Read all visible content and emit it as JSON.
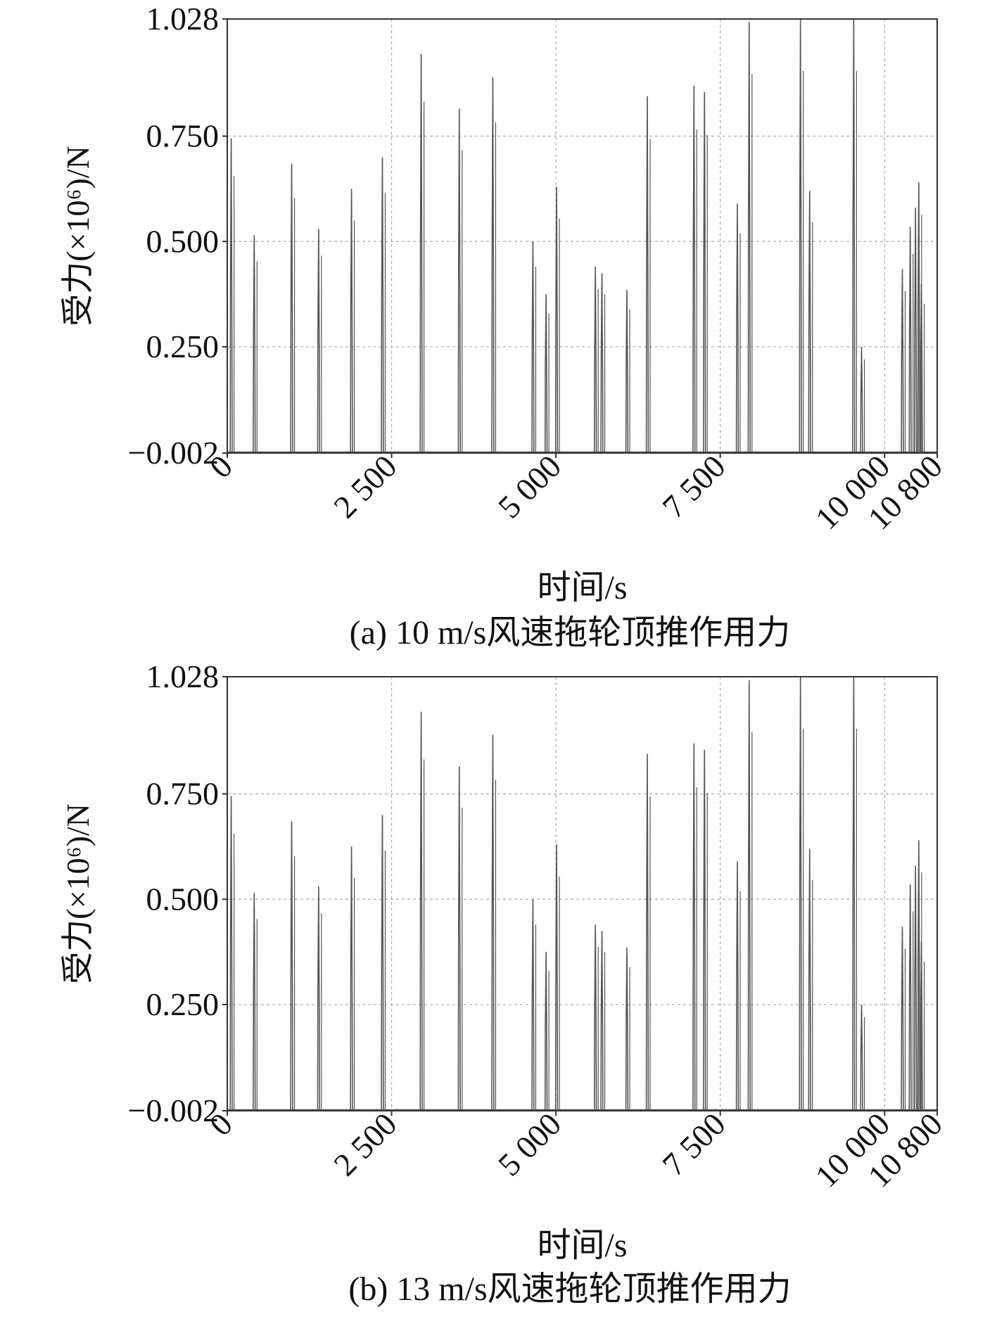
{
  "chart_data": [
    {
      "type": "line",
      "caption": "(a) 10 m/s风速拖轮顶推作用力",
      "xlabel": "时间/s",
      "ylabel": "受力(×10⁶)/N",
      "xlim": [
        0,
        10800
      ],
      "ylim": [
        -0.002,
        1.028
      ],
      "x_ticks": [
        0,
        2500,
        5000,
        7500,
        10000,
        10800
      ],
      "x_tick_labels": [
        "0",
        "2 500",
        "5 000",
        "7 500",
        "10 000",
        "10 800"
      ],
      "y_ticks": [
        -0.002,
        0.25,
        0.5,
        0.75,
        1.028
      ],
      "y_tick_labels": [
        "−0.002",
        "0.250",
        "0.500",
        "0.750",
        "1.028"
      ],
      "grid": true,
      "line_color": "#555555",
      "series": [
        {
          "peaks": [
            {
              "x": 60,
              "y": 0.745
            },
            {
              "x": 410,
              "y": 0.515
            },
            {
              "x": 980,
              "y": 0.685
            },
            {
              "x": 1390,
              "y": 0.53
            },
            {
              "x": 1890,
              "y": 0.625
            },
            {
              "x": 2360,
              "y": 0.7
            },
            {
              "x": 2950,
              "y": 0.945
            },
            {
              "x": 3530,
              "y": 0.815
            },
            {
              "x": 4040,
              "y": 0.89
            },
            {
              "x": 4650,
              "y": 0.5
            },
            {
              "x": 4850,
              "y": 0.375
            },
            {
              "x": 5010,
              "y": 0.63
            },
            {
              "x": 5600,
              "y": 0.44
            },
            {
              "x": 5700,
              "y": 0.425
            },
            {
              "x": 6080,
              "y": 0.385
            },
            {
              "x": 6390,
              "y": 0.845
            },
            {
              "x": 7100,
              "y": 0.87
            },
            {
              "x": 7260,
              "y": 0.855
            },
            {
              "x": 7760,
              "y": 0.59
            },
            {
              "x": 7940,
              "y": 1.02
            },
            {
              "x": 8720,
              "y": 1.028
            },
            {
              "x": 8860,
              "y": 0.62
            },
            {
              "x": 9530,
              "y": 1.028
            },
            {
              "x": 9650,
              "y": 0.25
            },
            {
              "x": 10270,
              "y": 0.435
            },
            {
              "x": 10390,
              "y": 0.535
            },
            {
              "x": 10470,
              "y": 0.58
            },
            {
              "x": 10520,
              "y": 0.64
            },
            {
              "x": 10560,
              "y": 0.4
            }
          ]
        }
      ]
    },
    {
      "type": "line",
      "caption": "(b) 13 m/s风速拖轮顶推作用力",
      "xlabel": "时间/s",
      "ylabel": "受力(×10⁶)/N",
      "xlim": [
        0,
        10800
      ],
      "ylim": [
        -0.002,
        1.028
      ],
      "x_ticks": [
        0,
        2500,
        5000,
        7500,
        10000,
        10800
      ],
      "x_tick_labels": [
        "0",
        "2 500",
        "5 000",
        "7 500",
        "10 000",
        "10 800"
      ],
      "y_ticks": [
        -0.002,
        0.25,
        0.5,
        0.75,
        1.028
      ],
      "y_tick_labels": [
        "−0.002",
        "0.250",
        "0.500",
        "0.750",
        "1.028"
      ],
      "grid": true,
      "line_color": "#555555",
      "series": [
        {
          "peaks": [
            {
              "x": 60,
              "y": 0.745
            },
            {
              "x": 410,
              "y": 0.515
            },
            {
              "x": 980,
              "y": 0.685
            },
            {
              "x": 1390,
              "y": 0.53
            },
            {
              "x": 1890,
              "y": 0.625
            },
            {
              "x": 2360,
              "y": 0.7
            },
            {
              "x": 2950,
              "y": 0.945
            },
            {
              "x": 3530,
              "y": 0.815
            },
            {
              "x": 4040,
              "y": 0.89
            },
            {
              "x": 4650,
              "y": 0.5
            },
            {
              "x": 4850,
              "y": 0.375
            },
            {
              "x": 5010,
              "y": 0.63
            },
            {
              "x": 5600,
              "y": 0.44
            },
            {
              "x": 5700,
              "y": 0.425
            },
            {
              "x": 6080,
              "y": 0.385
            },
            {
              "x": 6390,
              "y": 0.845
            },
            {
              "x": 7100,
              "y": 0.87
            },
            {
              "x": 7260,
              "y": 0.855
            },
            {
              "x": 7760,
              "y": 0.59
            },
            {
              "x": 7940,
              "y": 1.02
            },
            {
              "x": 8720,
              "y": 1.028
            },
            {
              "x": 8860,
              "y": 0.62
            },
            {
              "x": 9530,
              "y": 1.028
            },
            {
              "x": 9650,
              "y": 0.25
            },
            {
              "x": 10270,
              "y": 0.435
            },
            {
              "x": 10390,
              "y": 0.535
            },
            {
              "x": 10470,
              "y": 0.58
            },
            {
              "x": 10520,
              "y": 0.64
            },
            {
              "x": 10560,
              "y": 0.4
            }
          ]
        }
      ]
    }
  ]
}
